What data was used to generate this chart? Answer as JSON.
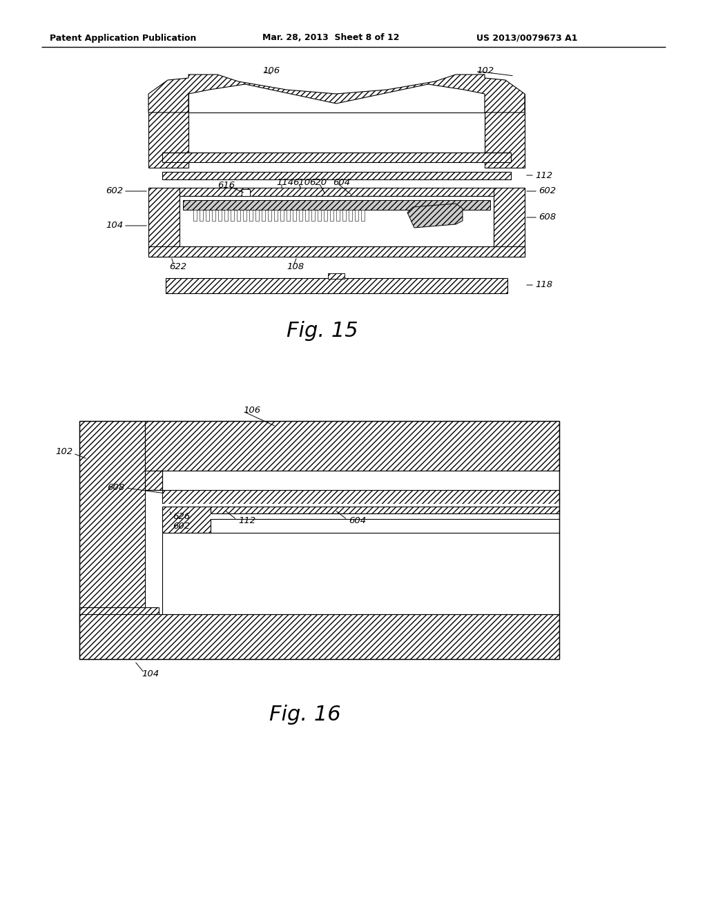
{
  "background_color": "#ffffff",
  "header_text": "Patent Application Publication",
  "header_date": "Mar. 28, 2013  Sheet 8 of 12",
  "header_patent": "US 2013/0079673 A1",
  "fig15_caption": "Fig. 15",
  "fig16_caption": "Fig. 16"
}
